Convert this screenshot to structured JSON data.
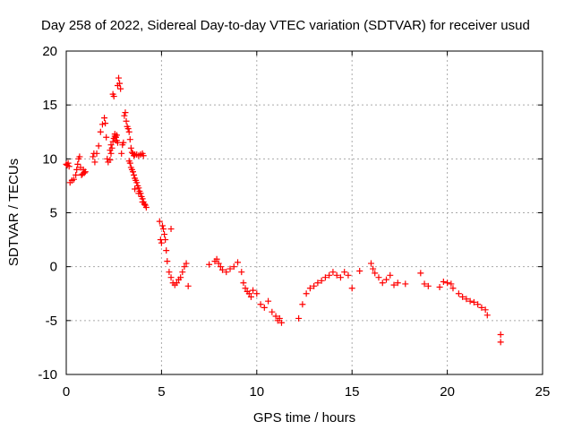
{
  "chart_data": {
    "type": "scatter",
    "title": "Day 258 of 2022, Sidereal Day-to-day VTEC variation (SDTVAR) for receiver usud",
    "xlabel": "GPS time / hours",
    "ylabel": "SDTVAR / TECUs",
    "xlim": [
      0,
      25
    ],
    "ylim": [
      -10,
      20
    ],
    "xticks": [
      0,
      5,
      10,
      15,
      20,
      25
    ],
    "xtick_labels": [
      "0",
      "5",
      "10",
      "15",
      "20",
      "25"
    ],
    "yticks": [
      -10,
      -5,
      0,
      5,
      10,
      15,
      20
    ],
    "ytick_labels": [
      "-10",
      "-5",
      "0",
      "5",
      "10",
      "15",
      "20"
    ],
    "grid": true,
    "marker": "+",
    "color": "#ff0000",
    "series": [
      {
        "name": "SDTVAR",
        "x": [
          0.0,
          0.05,
          0.1,
          0.15,
          0.2,
          0.3,
          0.4,
          0.5,
          0.55,
          0.6,
          0.65,
          0.7,
          0.75,
          0.8,
          0.85,
          0.9,
          0.95,
          1.0,
          1.4,
          1.45,
          1.5,
          1.6,
          1.7,
          1.8,
          1.9,
          2.0,
          2.05,
          2.1,
          2.15,
          2.2,
          2.3,
          2.35,
          2.4,
          2.45,
          2.5,
          2.55,
          2.6,
          2.65,
          2.7,
          2.75,
          2.8,
          2.85,
          2.9,
          2.95,
          3.0,
          3.05,
          3.1,
          3.15,
          3.2,
          3.25,
          3.3,
          3.35,
          3.4,
          3.45,
          3.5,
          3.55,
          3.6,
          3.7,
          3.8,
          3.9,
          4.0,
          4.05,
          3.3,
          3.35,
          3.4,
          3.45,
          3.5,
          3.55,
          3.6,
          3.65,
          3.7,
          3.75,
          3.8,
          3.85,
          3.9,
          3.95,
          4.0,
          4.05,
          4.1,
          4.15,
          4.2,
          2.3,
          2.35,
          2.45,
          2.5,
          2.55,
          2.6,
          2.65,
          2.7,
          3.6,
          3.8,
          4.0,
          4.9,
          4.95,
          5.0,
          5.05,
          5.1,
          5.15,
          5.2,
          5.25,
          5.3,
          5.4,
          5.5,
          5.6,
          5.7,
          5.8,
          5.9,
          6.0,
          6.1,
          6.2,
          6.3,
          6.4,
          5.5,
          7.5,
          7.8,
          7.9,
          8.0,
          8.1,
          8.2,
          8.4,
          8.6,
          8.8,
          9.0,
          9.2,
          9.3,
          9.4,
          9.5,
          9.6,
          9.7,
          9.8,
          10.0,
          10.2,
          10.4,
          10.6,
          10.8,
          11.0,
          11.1,
          11.2,
          11.3,
          12.2,
          12.4,
          12.6,
          12.8,
          13.0,
          13.2,
          13.4,
          13.6,
          13.8,
          14.0,
          14.2,
          14.4,
          14.6,
          14.8,
          15.0,
          15.4,
          16.0,
          16.1,
          16.2,
          16.4,
          16.6,
          16.8,
          17.0,
          17.2,
          17.4,
          17.8,
          18.6,
          18.8,
          19.0,
          19.6,
          19.8,
          20.0,
          20.2,
          20.3,
          20.6,
          20.8,
          21.0,
          21.2,
          21.4,
          21.6,
          21.8,
          22.0,
          22.1,
          22.8,
          22.8
        ],
        "y": [
          9.5,
          9.4,
          9.6,
          9.3,
          7.8,
          8.0,
          8.1,
          8.5,
          9.0,
          9.5,
          10.0,
          10.2,
          9.2,
          8.5,
          8.6,
          9.0,
          8.7,
          8.8,
          10.2,
          10.5,
          9.7,
          10.5,
          11.2,
          12.5,
          13.2,
          13.8,
          13.3,
          12.0,
          10.0,
          9.7,
          9.9,
          10.5,
          11.0,
          16.0,
          15.8,
          12.3,
          12.0,
          12.2,
          16.8,
          17.5,
          17.0,
          16.5,
          10.5,
          11.3,
          11.5,
          14.0,
          14.3,
          13.5,
          13.0,
          12.8,
          12.5,
          11.8,
          11.0,
          10.6,
          10.5,
          10.3,
          10.4,
          10.4,
          10.3,
          10.4,
          10.5,
          10.3,
          9.8,
          9.6,
          9.2,
          9.0,
          8.8,
          8.5,
          8.2,
          8.0,
          7.8,
          7.5,
          7.3,
          7.0,
          6.8,
          6.5,
          6.3,
          6.0,
          5.8,
          5.7,
          5.5,
          10.8,
          11.3,
          11.6,
          11.9,
          12.1,
          12.0,
          11.7,
          11.5,
          7.2,
          6.8,
          6.0,
          4.2,
          2.5,
          2.2,
          3.8,
          3.5,
          3.0,
          2.5,
          1.5,
          0.5,
          -0.5,
          -1.0,
          -1.5,
          -1.7,
          -1.5,
          -1.2,
          -1.0,
          -0.5,
          0.0,
          0.3,
          -1.8,
          3.5,
          0.2,
          0.5,
          0.7,
          0.3,
          0.0,
          -0.3,
          -0.5,
          -0.2,
          0.0,
          0.4,
          -0.5,
          -1.5,
          -2.0,
          -2.3,
          -2.5,
          -2.8,
          -2.2,
          -2.5,
          -3.5,
          -3.8,
          -3.2,
          -4.2,
          -4.6,
          -5.0,
          -4.8,
          -5.2,
          -4.8,
          -3.5,
          -2.5,
          -2.0,
          -1.8,
          -1.5,
          -1.3,
          -1.0,
          -0.8,
          -0.5,
          -0.8,
          -1.0,
          -0.5,
          -0.8,
          -2.0,
          -0.4,
          0.3,
          -0.2,
          -0.6,
          -1.0,
          -1.5,
          -1.2,
          -0.8,
          -1.7,
          -1.5,
          -1.6,
          -0.6,
          -1.6,
          -1.8,
          -1.9,
          -1.4,
          -1.5,
          -1.6,
          -2.0,
          -2.5,
          -2.8,
          -3.0,
          -3.2,
          -3.3,
          -3.5,
          -3.8,
          -4.0,
          -4.5,
          -6.3,
          -7.0
        ]
      }
    ]
  }
}
